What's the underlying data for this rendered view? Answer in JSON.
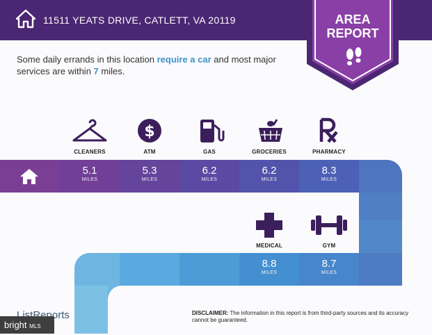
{
  "header": {
    "address": "11511 YEATS DRIVE, CATLETT, VA 20119",
    "badge_line1": "AREA",
    "badge_line2": "REPORT"
  },
  "intro": {
    "part1": "Some daily errands in this location ",
    "highlight1": "require a car",
    "part2": " and most major services are within ",
    "highlight2": "7",
    "part3": " miles."
  },
  "services_top": [
    {
      "label": "CLEANERS",
      "icon": "hanger-icon",
      "distance": "5.1",
      "unit": "MILES"
    },
    {
      "label": "ATM",
      "icon": "dollar-icon",
      "distance": "5.3",
      "unit": "MILES"
    },
    {
      "label": "GAS",
      "icon": "gas-pump-icon",
      "distance": "6.2",
      "unit": "MILES"
    },
    {
      "label": "GROCERIES",
      "icon": "basket-icon",
      "distance": "6.2",
      "unit": "MILES"
    },
    {
      "label": "PHARMACY",
      "icon": "rx-icon",
      "distance": "8.3",
      "unit": "MILES"
    }
  ],
  "services_bottom": [
    {
      "label": "MEDICAL",
      "icon": "medical-cross-icon",
      "distance": "8.8",
      "unit": "MILES"
    },
    {
      "label": "GYM",
      "icon": "dumbbell-icon",
      "distance": "8.7",
      "unit": "MILES"
    }
  ],
  "footer": {
    "logo_text": "ListReports",
    "disclaimer_title": "DISCLAIMER:",
    "disclaimer_text": " The information in this report is from third-party sources and its accuracy cannot be guaranteed.",
    "mls_text": "bright",
    "mls_small": "MLS"
  },
  "colors": {
    "header": "#4b2672",
    "row_purple": "#7a3f94",
    "row_blue": "#4f7fc4",
    "row_light": "#7cc0e6",
    "highlight": "#3d93c9"
  }
}
